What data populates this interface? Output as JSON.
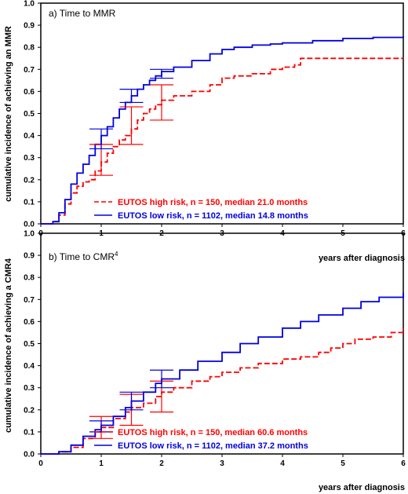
{
  "chart_data": [
    {
      "type": "line",
      "title": "a) Time to MMR",
      "title_superscript": "",
      "xlabel": "years after diagnosis",
      "ylabel": "cumulative incidence of achieving an MMR",
      "xlim": [
        0,
        6
      ],
      "ylim": [
        0,
        1.0
      ],
      "xticks": [
        "0",
        "1",
        "2",
        "3",
        "4",
        "5",
        "6"
      ],
      "yticks": [
        "0.0",
        "0.1",
        "0.2",
        "0.3",
        "0.4",
        "0.5",
        "0.6",
        "0.7",
        "0.8",
        "0.9",
        "1.0"
      ],
      "grid": false,
      "legend_position": "bottom-right",
      "series": [
        {
          "name": "EUTOS high risk, n = 150, median 21.0 months",
          "color": "#ff0000",
          "style": "dashed-step",
          "x": [
            0,
            0.2,
            0.3,
            0.4,
            0.5,
            0.6,
            0.7,
            0.8,
            0.9,
            1.0,
            1.1,
            1.2,
            1.3,
            1.4,
            1.5,
            1.6,
            1.7,
            1.8,
            1.9,
            2.0,
            2.2,
            2.5,
            2.8,
            3.0,
            3.2,
            3.5,
            3.8,
            4.0,
            4.2,
            4.3,
            4.5,
            5.0,
            5.5,
            6.0
          ],
          "y": [
            0.0,
            0.01,
            0.04,
            0.09,
            0.14,
            0.17,
            0.19,
            0.2,
            0.24,
            0.28,
            0.32,
            0.35,
            0.38,
            0.4,
            0.43,
            0.47,
            0.5,
            0.52,
            0.54,
            0.56,
            0.58,
            0.6,
            0.63,
            0.66,
            0.67,
            0.68,
            0.7,
            0.71,
            0.72,
            0.75,
            0.75,
            0.75,
            0.75,
            0.75
          ]
        },
        {
          "name": "EUTOS low risk, n = 1102, median 14.8 months",
          "color": "#0000dd",
          "style": "solid-step",
          "x": [
            0,
            0.2,
            0.3,
            0.4,
            0.5,
            0.6,
            0.7,
            0.8,
            0.9,
            1.0,
            1.1,
            1.2,
            1.3,
            1.4,
            1.5,
            1.6,
            1.7,
            1.8,
            1.9,
            2.0,
            2.2,
            2.5,
            2.8,
            3.0,
            3.2,
            3.5,
            3.8,
            4.0,
            4.5,
            5.0,
            5.5,
            6.0
          ],
          "y": [
            0.0,
            0.01,
            0.05,
            0.11,
            0.18,
            0.23,
            0.27,
            0.31,
            0.36,
            0.4,
            0.44,
            0.48,
            0.52,
            0.55,
            0.58,
            0.61,
            0.63,
            0.65,
            0.67,
            0.69,
            0.71,
            0.74,
            0.77,
            0.79,
            0.8,
            0.81,
            0.815,
            0.82,
            0.83,
            0.84,
            0.845,
            0.85
          ]
        }
      ],
      "error_bars": [
        {
          "series": 0,
          "x": 1.0,
          "low": 0.22,
          "high": 0.36
        },
        {
          "series": 0,
          "x": 1.5,
          "low": 0.36,
          "high": 0.53
        },
        {
          "series": 0,
          "x": 2.0,
          "low": 0.47,
          "high": 0.63
        },
        {
          "series": 1,
          "x": 1.0,
          "low": 0.34,
          "high": 0.43
        },
        {
          "series": 1,
          "x": 1.5,
          "low": 0.55,
          "high": 0.61
        },
        {
          "series": 1,
          "x": 2.0,
          "low": 0.66,
          "high": 0.7
        }
      ]
    },
    {
      "type": "line",
      "title": "b) Time to CMR",
      "title_superscript": "4",
      "xlabel": "years after diagnosis",
      "ylabel": "cumulative incidence of achieving a CMR4",
      "xlim": [
        0,
        6
      ],
      "ylim": [
        0,
        1.0
      ],
      "xticks": [
        "0",
        "1",
        "2",
        "3",
        "4",
        "5",
        "6"
      ],
      "yticks": [
        "0.0",
        "0.1",
        "0.2",
        "0.3",
        "0.4",
        "0.5",
        "0.6",
        "0.7",
        "0.8",
        "0.9",
        "1.0"
      ],
      "grid": false,
      "legend_position": "bottom-right",
      "series": [
        {
          "name": "EUTOS high risk, n = 150, median 60.6 months",
          "color": "#ff0000",
          "style": "dashed-step",
          "x": [
            0,
            0.3,
            0.5,
            0.7,
            0.9,
            1.0,
            1.2,
            1.4,
            1.5,
            1.7,
            1.9,
            2.0,
            2.2,
            2.5,
            2.8,
            3.0,
            3.3,
            3.6,
            4.0,
            4.3,
            4.6,
            4.8,
            5.0,
            5.2,
            5.5,
            5.8,
            6.0
          ],
          "y": [
            0.0,
            0.01,
            0.03,
            0.07,
            0.1,
            0.12,
            0.16,
            0.19,
            0.21,
            0.23,
            0.26,
            0.28,
            0.3,
            0.33,
            0.35,
            0.37,
            0.39,
            0.41,
            0.43,
            0.44,
            0.46,
            0.48,
            0.5,
            0.52,
            0.53,
            0.55,
            0.57
          ]
        },
        {
          "name": "EUTOS low risk, n = 1102, median 37.2 months",
          "color": "#0000dd",
          "style": "solid-step",
          "x": [
            0,
            0.3,
            0.5,
            0.7,
            0.9,
            1.0,
            1.2,
            1.4,
            1.5,
            1.7,
            1.9,
            2.0,
            2.3,
            2.6,
            3.0,
            3.3,
            3.6,
            4.0,
            4.3,
            4.6,
            5.0,
            5.3,
            5.6,
            6.0
          ],
          "y": [
            0.0,
            0.01,
            0.04,
            0.08,
            0.11,
            0.13,
            0.17,
            0.21,
            0.24,
            0.28,
            0.32,
            0.34,
            0.38,
            0.42,
            0.46,
            0.5,
            0.53,
            0.57,
            0.6,
            0.63,
            0.66,
            0.69,
            0.71,
            0.73
          ]
        }
      ],
      "error_bars": [
        {
          "series": 0,
          "x": 1.0,
          "low": 0.07,
          "high": 0.17
        },
        {
          "series": 0,
          "x": 1.5,
          "low": 0.13,
          "high": 0.27
        },
        {
          "series": 0,
          "x": 2.0,
          "low": 0.19,
          "high": 0.33
        },
        {
          "series": 1,
          "x": 1.0,
          "low": 0.1,
          "high": 0.15
        },
        {
          "series": 1,
          "x": 1.5,
          "low": 0.2,
          "high": 0.28
        },
        {
          "series": 1,
          "x": 2.0,
          "low": 0.3,
          "high": 0.38
        }
      ]
    }
  ]
}
